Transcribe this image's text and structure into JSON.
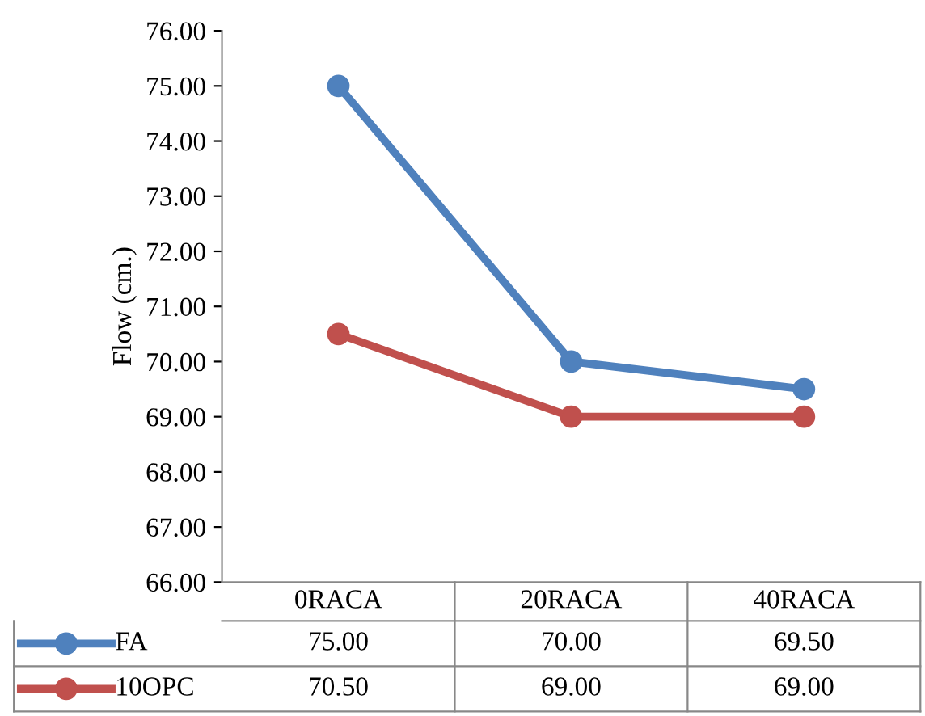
{
  "chart_data": {
    "type": "line",
    "ylabel": "Flow (cm.)",
    "categories": [
      "0RACA",
      "20RACA",
      "40RACA"
    ],
    "series": [
      {
        "name": "FA",
        "color": "#4f81bd",
        "values": [
          75.0,
          70.0,
          69.5
        ],
        "value_labels": [
          "75.00",
          "70.00",
          "69.50"
        ]
      },
      {
        "name": "10OPC",
        "color": "#c0504d",
        "values": [
          70.5,
          69.0,
          69.0
        ],
        "value_labels": [
          "70.50",
          "69.00",
          "69.00"
        ]
      }
    ],
    "ylim": [
      66,
      76
    ],
    "yticks": [
      {
        "value": 66,
        "label": "66.00"
      },
      {
        "value": 67,
        "label": "67.00"
      },
      {
        "value": 68,
        "label": "68.00"
      },
      {
        "value": 69,
        "label": "69.00"
      },
      {
        "value": 70,
        "label": "70.00"
      },
      {
        "value": 71,
        "label": "71.00"
      },
      {
        "value": 72,
        "label": "72.00"
      },
      {
        "value": 73,
        "label": "73.00"
      },
      {
        "value": 74,
        "label": "74.00"
      },
      {
        "value": 75,
        "label": "75.00"
      },
      {
        "value": 76,
        "label": "76.00"
      }
    ],
    "marker": "circle",
    "line_style": "solid",
    "grid": false,
    "legend": "bottom"
  }
}
